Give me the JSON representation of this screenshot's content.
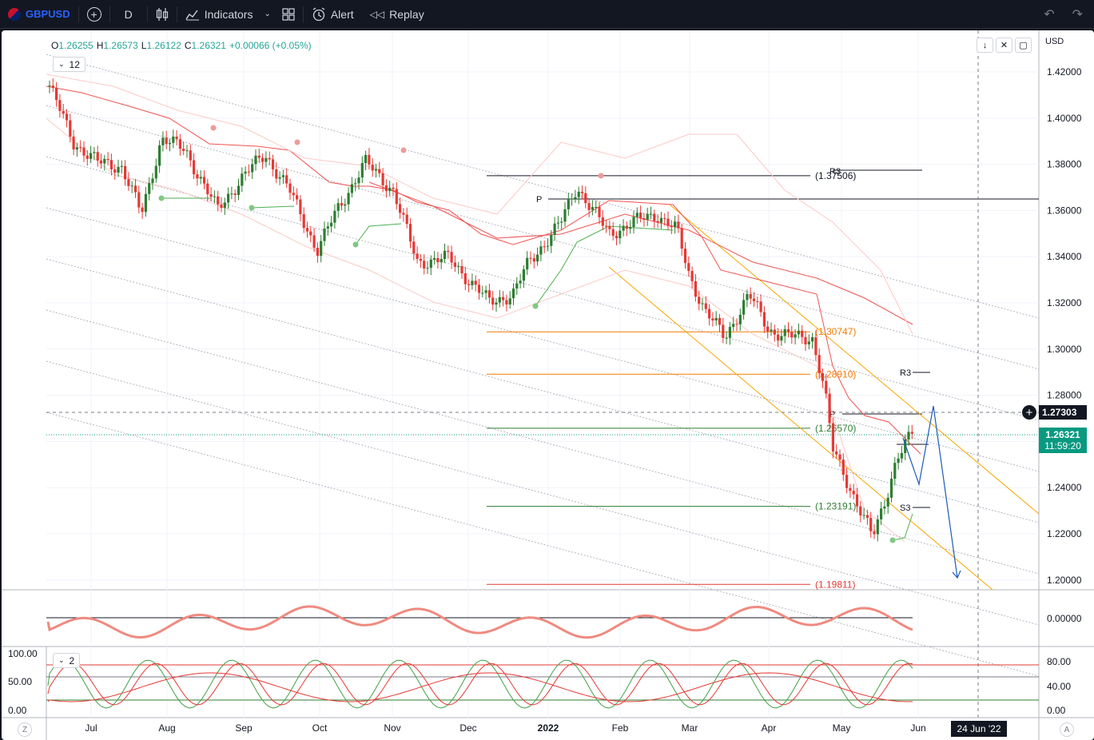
{
  "toolbar": {
    "symbol": "GBPUSD",
    "interval": "D",
    "indicators_label": "Indicators",
    "alert_label": "Alert",
    "replay_label": "Replay"
  },
  "legend": {
    "open_key": "O",
    "open": "1.26255",
    "high_key": "H",
    "high": "1.26573",
    "low_key": "L",
    "low": "1.26122",
    "close_key": "C",
    "close": "1.26321",
    "change": "+0.00066 (+0.05%)",
    "hidden_count": "12",
    "pane2_count": "2"
  },
  "currency": "USD",
  "price_axis": [
    "1.42000",
    "1.40000",
    "1.38000",
    "1.36000",
    "1.34000",
    "1.32000",
    "1.30000",
    "1.28000",
    "1.26000",
    "1.24000",
    "1.22000",
    "1.20000"
  ],
  "macd_axis": [
    "0.00000"
  ],
  "stoch_axis_left": [
    "100.00",
    "50.00",
    "0.00"
  ],
  "stoch_axis_right": [
    "80.00",
    "40.00",
    "0.00"
  ],
  "time_axis": [
    "Jul",
    "Aug",
    "Sep",
    "Oct",
    "Nov",
    "Dec",
    "2022",
    "Feb",
    "Mar",
    "Apr",
    "May",
    "Jun"
  ],
  "crosshair_price": "1.27303",
  "last_price": "1.26321",
  "countdown": "11:59:20",
  "crosshair_date": "24 Jun '22",
  "fib_labels": [
    "(1.37506)",
    "(1.30747)",
    "(1.28910)",
    "(1.26570)",
    "(1.23191)",
    "(1.19811)"
  ],
  "pivot_labels": {
    "p1": "P",
    "r3_top": "R3",
    "r3": "R3",
    "p2": "P",
    "s3": "S3"
  },
  "colors": {
    "up": "#26a69a",
    "down": "#ef5350",
    "accent": "#2962ff",
    "green_candle": "#2e7d32",
    "red_candle": "#e53935"
  }
}
